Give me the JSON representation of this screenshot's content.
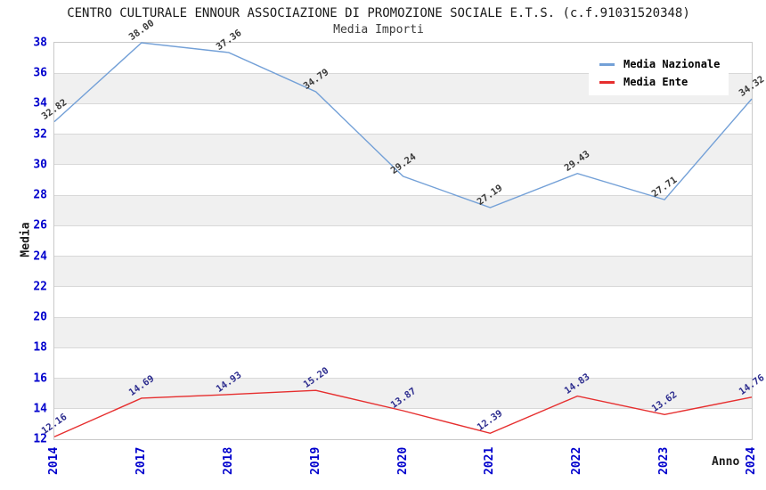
{
  "title": "CENTRO CULTURALE ENNOUR ASSOCIAZIONE DI PROMOZIONE SOCIALE E.T.S. (c.f.91031520348)",
  "subtitle": "Media Importi",
  "axes": {
    "y_title": "Media",
    "x_title": "Anno",
    "tick_label_color": "#0000cd"
  },
  "chart_data": {
    "type": "line",
    "title": "CENTRO CULTURALE ENNOUR ASSOCIAZIONE DI PROMOZIONE SOCIALE E.T.S. (c.f.91031520348)",
    "subtitle": "Media Importi",
    "xlabel": "Anno",
    "ylabel": "Media",
    "x": [
      "2014",
      "2017",
      "2018",
      "2019",
      "2020",
      "2021",
      "2022",
      "2023",
      "2024"
    ],
    "series": [
      {
        "name": "Media Nazionale",
        "color": "#73a0d7",
        "label_color": "#3a3a3a",
        "values": [
          32.82,
          38.0,
          37.36,
          34.79,
          29.24,
          27.19,
          29.43,
          27.71,
          34.32
        ]
      },
      {
        "name": "Media Ente",
        "color": "#e62e2e",
        "label_color": "#2e2e8f",
        "values": [
          12.16,
          14.69,
          14.93,
          15.2,
          13.87,
          12.39,
          14.83,
          13.62,
          14.76
        ]
      }
    ],
    "ylim": [
      12,
      38
    ],
    "y_ticks": [
      12,
      14,
      16,
      18,
      20,
      22,
      24,
      26,
      28,
      30,
      32,
      34,
      36,
      38
    ],
    "grid": true,
    "band_colors": [
      "#ffffff",
      "#f0f0f0"
    ],
    "legend_position": "top-right"
  }
}
